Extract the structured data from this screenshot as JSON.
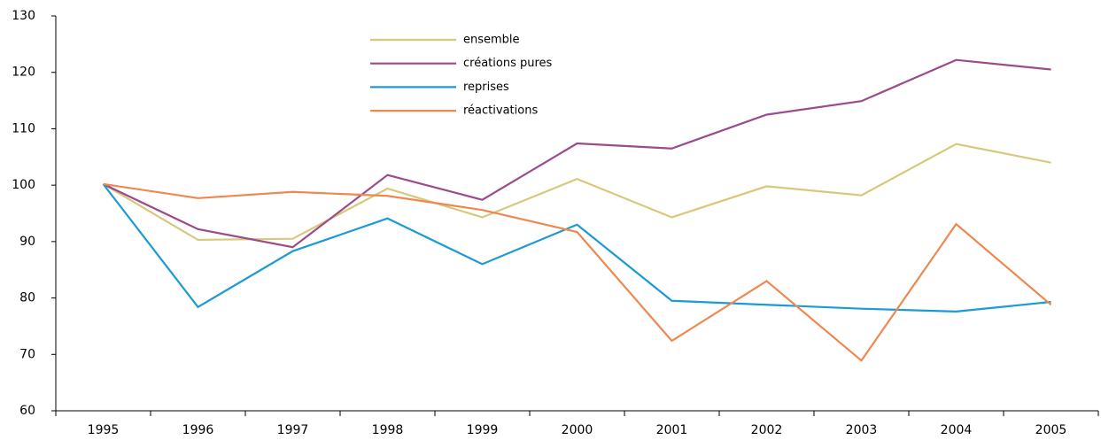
{
  "chart_data": {
    "type": "line",
    "categories": [
      "1995",
      "1996",
      "1997",
      "1998",
      "1999",
      "2000",
      "2001",
      "2002",
      "2003",
      "2004",
      "2005"
    ],
    "series": [
      {
        "name": "ensemble",
        "color": "#d6c97c",
        "values": [
          100.2,
          90.3,
          90.5,
          99.4,
          94.3,
          101.1,
          94.3,
          99.8,
          98.2,
          107.3,
          104.0
        ]
      },
      {
        "name": "créations pures",
        "color": "#9b4a8a",
        "values": [
          100.2,
          92.2,
          89.0,
          101.8,
          97.4,
          107.4,
          106.5,
          112.5,
          114.9,
          122.2,
          120.5
        ]
      },
      {
        "name": "reprises",
        "color": "#1b9ad6",
        "values": [
          100.2,
          78.4,
          88.3,
          94.1,
          86.0,
          93.0,
          79.5,
          78.8,
          78.1,
          77.6,
          79.3
        ]
      },
      {
        "name": "réactivations",
        "color": "#ef884f",
        "values": [
          100.2,
          97.7,
          98.8,
          98.1,
          95.6,
          91.7,
          72.4,
          83.0,
          68.9,
          93.1,
          78.8
        ]
      }
    ],
    "ylim": [
      60,
      130
    ],
    "yticks": [
      60,
      70,
      80,
      90,
      100,
      110,
      120,
      130
    ],
    "grid": false,
    "legend": "top"
  }
}
